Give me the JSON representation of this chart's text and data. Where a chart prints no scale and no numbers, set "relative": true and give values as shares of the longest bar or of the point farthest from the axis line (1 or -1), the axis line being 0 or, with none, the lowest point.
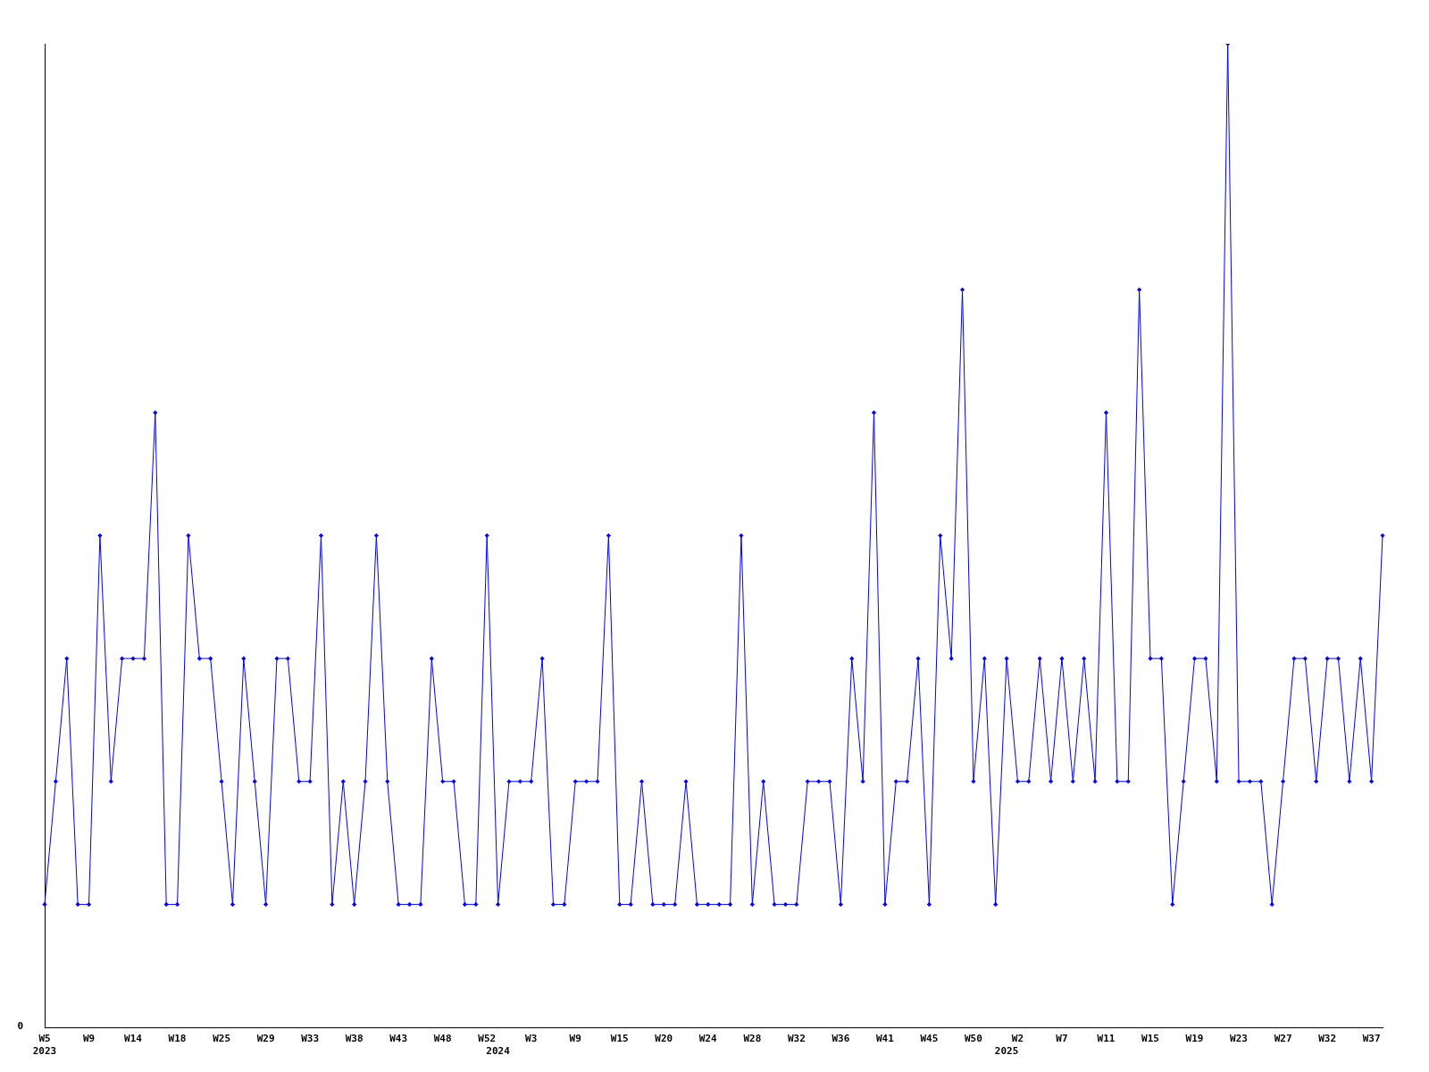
{
  "chart_data": {
    "type": "line",
    "relative": true,
    "marker": "diamond",
    "line_style": "solid",
    "color": "#0000ff",
    "categories": [
      "W5\n2023",
      null,
      null,
      null,
      "W9",
      null,
      null,
      null,
      "W14",
      null,
      null,
      null,
      "W18",
      null,
      null,
      null,
      "W25",
      null,
      null,
      null,
      "W29",
      null,
      null,
      null,
      "W33",
      null,
      null,
      null,
      "W38",
      null,
      null,
      null,
      "W43",
      null,
      null,
      null,
      "W48",
      null,
      null,
      null,
      "W52",
      "\n2024",
      null,
      null,
      "W3",
      null,
      null,
      null,
      "W9",
      null,
      null,
      null,
      "W15",
      null,
      null,
      null,
      "W20",
      null,
      null,
      null,
      "W24",
      null,
      null,
      null,
      "W28",
      null,
      null,
      null,
      "W32",
      null,
      null,
      null,
      "W36",
      null,
      null,
      null,
      "W41",
      null,
      null,
      null,
      "W45",
      null,
      null,
      null,
      "W50",
      null,
      null,
      "\n2025",
      "W2",
      null,
      null,
      null,
      "W7",
      null,
      null,
      null,
      "W11",
      null,
      null,
      null,
      "W15",
      null,
      null,
      null,
      "W19",
      null,
      null,
      null,
      "W23",
      null,
      null,
      null,
      "W27",
      null,
      null,
      null,
      "W32",
      null,
      null,
      null,
      "W37",
      null
    ],
    "values": [
      0.125,
      0.25,
      0.375,
      0.125,
      0.125,
      0.5,
      0.25,
      0.375,
      0.375,
      0.375,
      0.625,
      0.125,
      0.125,
      0.5,
      0.375,
      0.375,
      0.25,
      0.125,
      0.375,
      0.25,
      0.125,
      0.375,
      0.375,
      0.25,
      0.25,
      0.5,
      0.125,
      0.25,
      0.125,
      0.25,
      0.5,
      0.25,
      0.125,
      0.125,
      0.125,
      0.375,
      0.25,
      0.25,
      0.125,
      0.125,
      0.5,
      0.125,
      0.25,
      0.25,
      0.25,
      0.375,
      0.125,
      0.125,
      0.25,
      0.25,
      0.25,
      0.5,
      0.125,
      0.125,
      0.25,
      0.125,
      0.125,
      0.125,
      0.25,
      0.125,
      0.125,
      0.125,
      0.125,
      0.5,
      0.125,
      0.25,
      0.125,
      0.125,
      0.125,
      0.25,
      0.25,
      0.25,
      0.125,
      0.375,
      0.25,
      0.625,
      0.125,
      0.25,
      0.25,
      0.375,
      0.125,
      0.5,
      0.375,
      0.75,
      0.25,
      0.375,
      0.125,
      0.375,
      0.25,
      0.25,
      0.375,
      0.25,
      0.375,
      0.25,
      0.375,
      0.25,
      0.625,
      0.25,
      0.25,
      0.75,
      0.375,
      0.375,
      0.125,
      0.25,
      0.375,
      0.375,
      0.25,
      1,
      0.25,
      0.25,
      0.25,
      0.125,
      0.25,
      0.375,
      0.375,
      0.25,
      0.375,
      0.375,
      0.25,
      0.375,
      0.25,
      0.5
    ],
    "annotations": [
      "0"
    ]
  }
}
